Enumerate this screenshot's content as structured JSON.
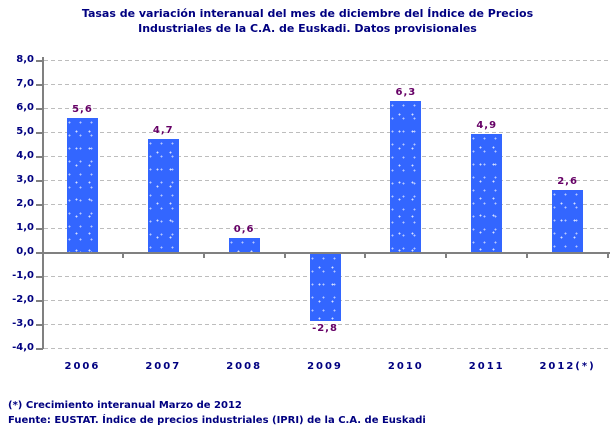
{
  "title_lines": [
    "Tasas de variación interanual del mes de diciembre del Índice de Precios",
    "Industriales de la C.A. de Euskadi. Datos provisionales"
  ],
  "chart_data": {
    "type": "bar",
    "title": "Tasas de variación interanual del mes de diciembre del Índice de Precios Industriales de la C.A. de Euskadi. Datos provisionales",
    "categories": [
      "2006",
      "2007",
      "2008",
      "2009",
      "2010",
      "2011",
      "2012(*)"
    ],
    "values": [
      5.6,
      4.7,
      0.6,
      -2.8,
      6.3,
      4.9,
      2.6
    ],
    "value_labels": [
      "5,6",
      "4,7",
      "0,6",
      "-2,8",
      "6,3",
      "4,9",
      "2,6"
    ],
    "xlabel": "",
    "ylabel": "",
    "ylim": [
      -4,
      8
    ],
    "y_ticks": [
      8,
      7,
      6,
      5,
      4,
      3,
      2,
      1,
      0,
      -1,
      -2,
      -3,
      -4
    ],
    "y_tick_labels": [
      "8,0",
      "7,0",
      "6,0",
      "5,0",
      "4,0",
      "3,0",
      "2,0",
      "1,0",
      "0,0",
      "-1,0",
      "-2,0",
      "-3,0",
      "-4,0"
    ],
    "grid": "horizontal dashed",
    "legend": "none"
  },
  "footer": {
    "note": "(*)  Crecimiento interanual Marzo de 2012",
    "source": "Fuente: EUSTAT. Índice de precios industriales (IPRI) de la C.A. de Euskadi"
  },
  "colors": {
    "text": "#000080",
    "bar": "#3366ff",
    "value_label": "#660066",
    "grid": "#bdbdbd",
    "axis": "#808080",
    "background": "#ffffff"
  }
}
